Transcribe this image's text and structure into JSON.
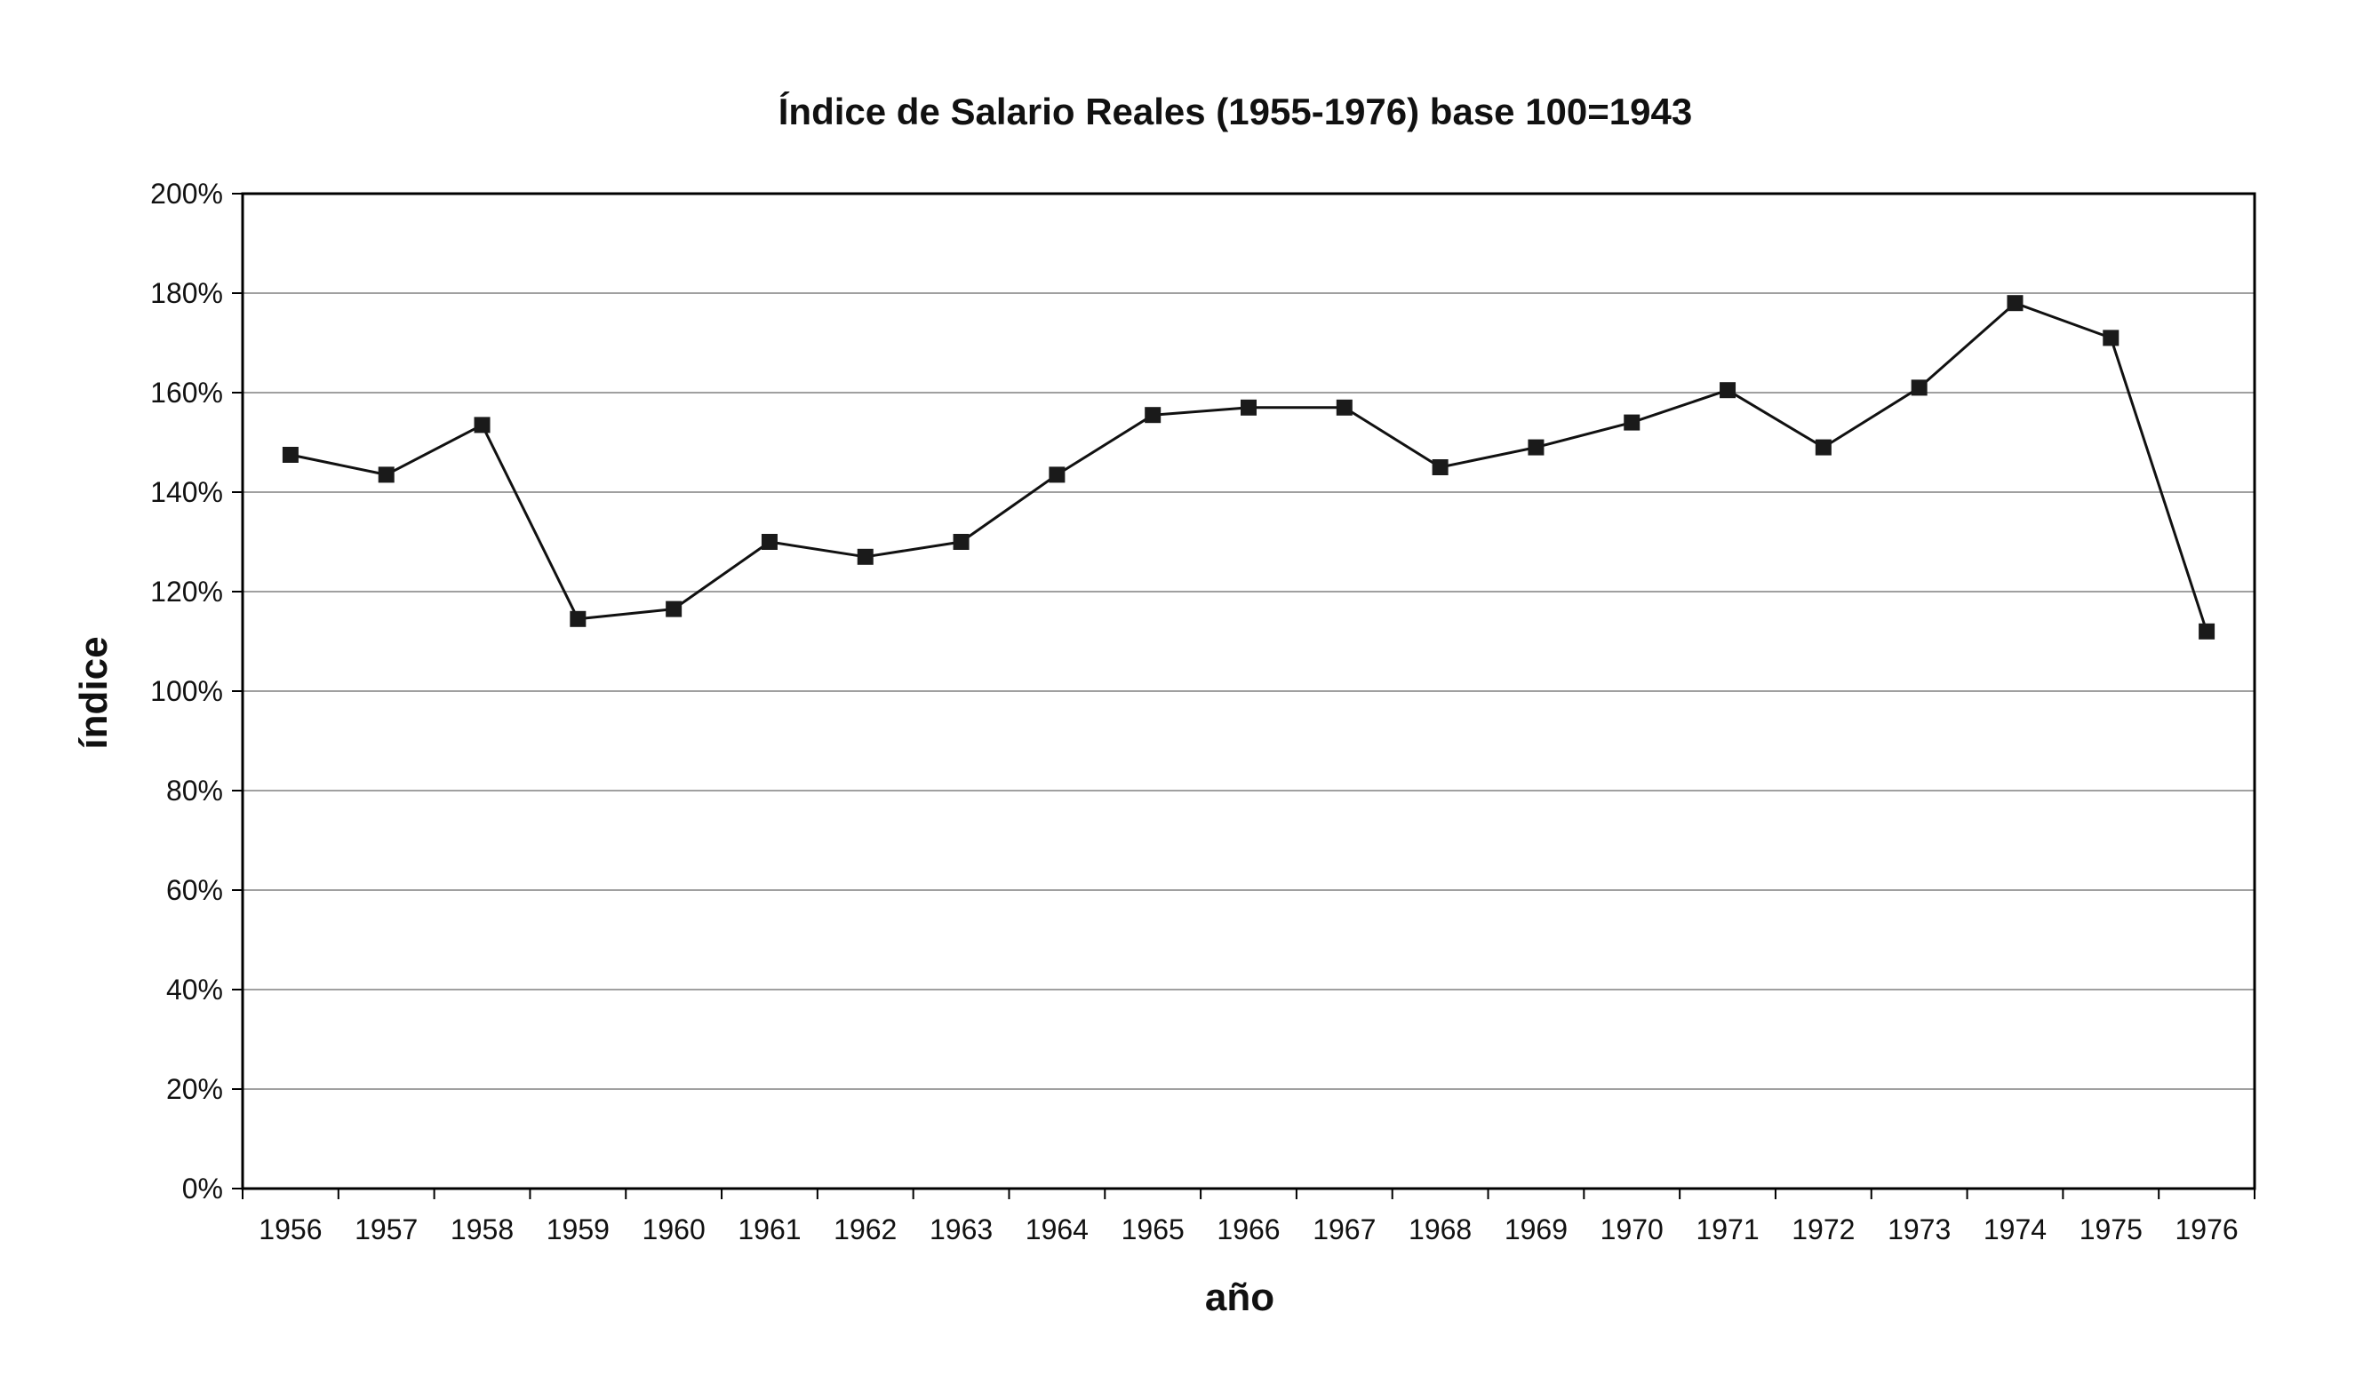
{
  "chart_data": {
    "type": "line",
    "title": "Índice de Salario Reales (1955-1976) base 100=1943",
    "xlabel": "año",
    "ylabel": "índice",
    "categories": [
      "1956",
      "1957",
      "1958",
      "1959",
      "1960",
      "1961",
      "1962",
      "1963",
      "1964",
      "1965",
      "1966",
      "1967",
      "1968",
      "1969",
      "1970",
      "1971",
      "1972",
      "1973",
      "1974",
      "1975",
      "1976"
    ],
    "series": [
      {
        "values": [
          147.5,
          143.5,
          153.5,
          114.5,
          116.5,
          130,
          127,
          130,
          143.5,
          155.5,
          157,
          157,
          145,
          149,
          154,
          160.5,
          149,
          161,
          178,
          171,
          112
        ]
      }
    ],
    "ylim": [
      0,
      200
    ],
    "yticks": [
      0,
      20,
      40,
      60,
      80,
      100,
      120,
      140,
      160,
      180,
      200
    ],
    "ytick_labels": [
      "0%",
      "20%",
      "40%",
      "60%",
      "80%",
      "100%",
      "120%",
      "140%",
      "160%",
      "180%",
      "200%"
    ],
    "grid": true,
    "legend": "none",
    "colors": {
      "line": "#111111",
      "marker": "#1a1a1a",
      "grid": "#a0a0a0",
      "frame": "#000000"
    }
  }
}
